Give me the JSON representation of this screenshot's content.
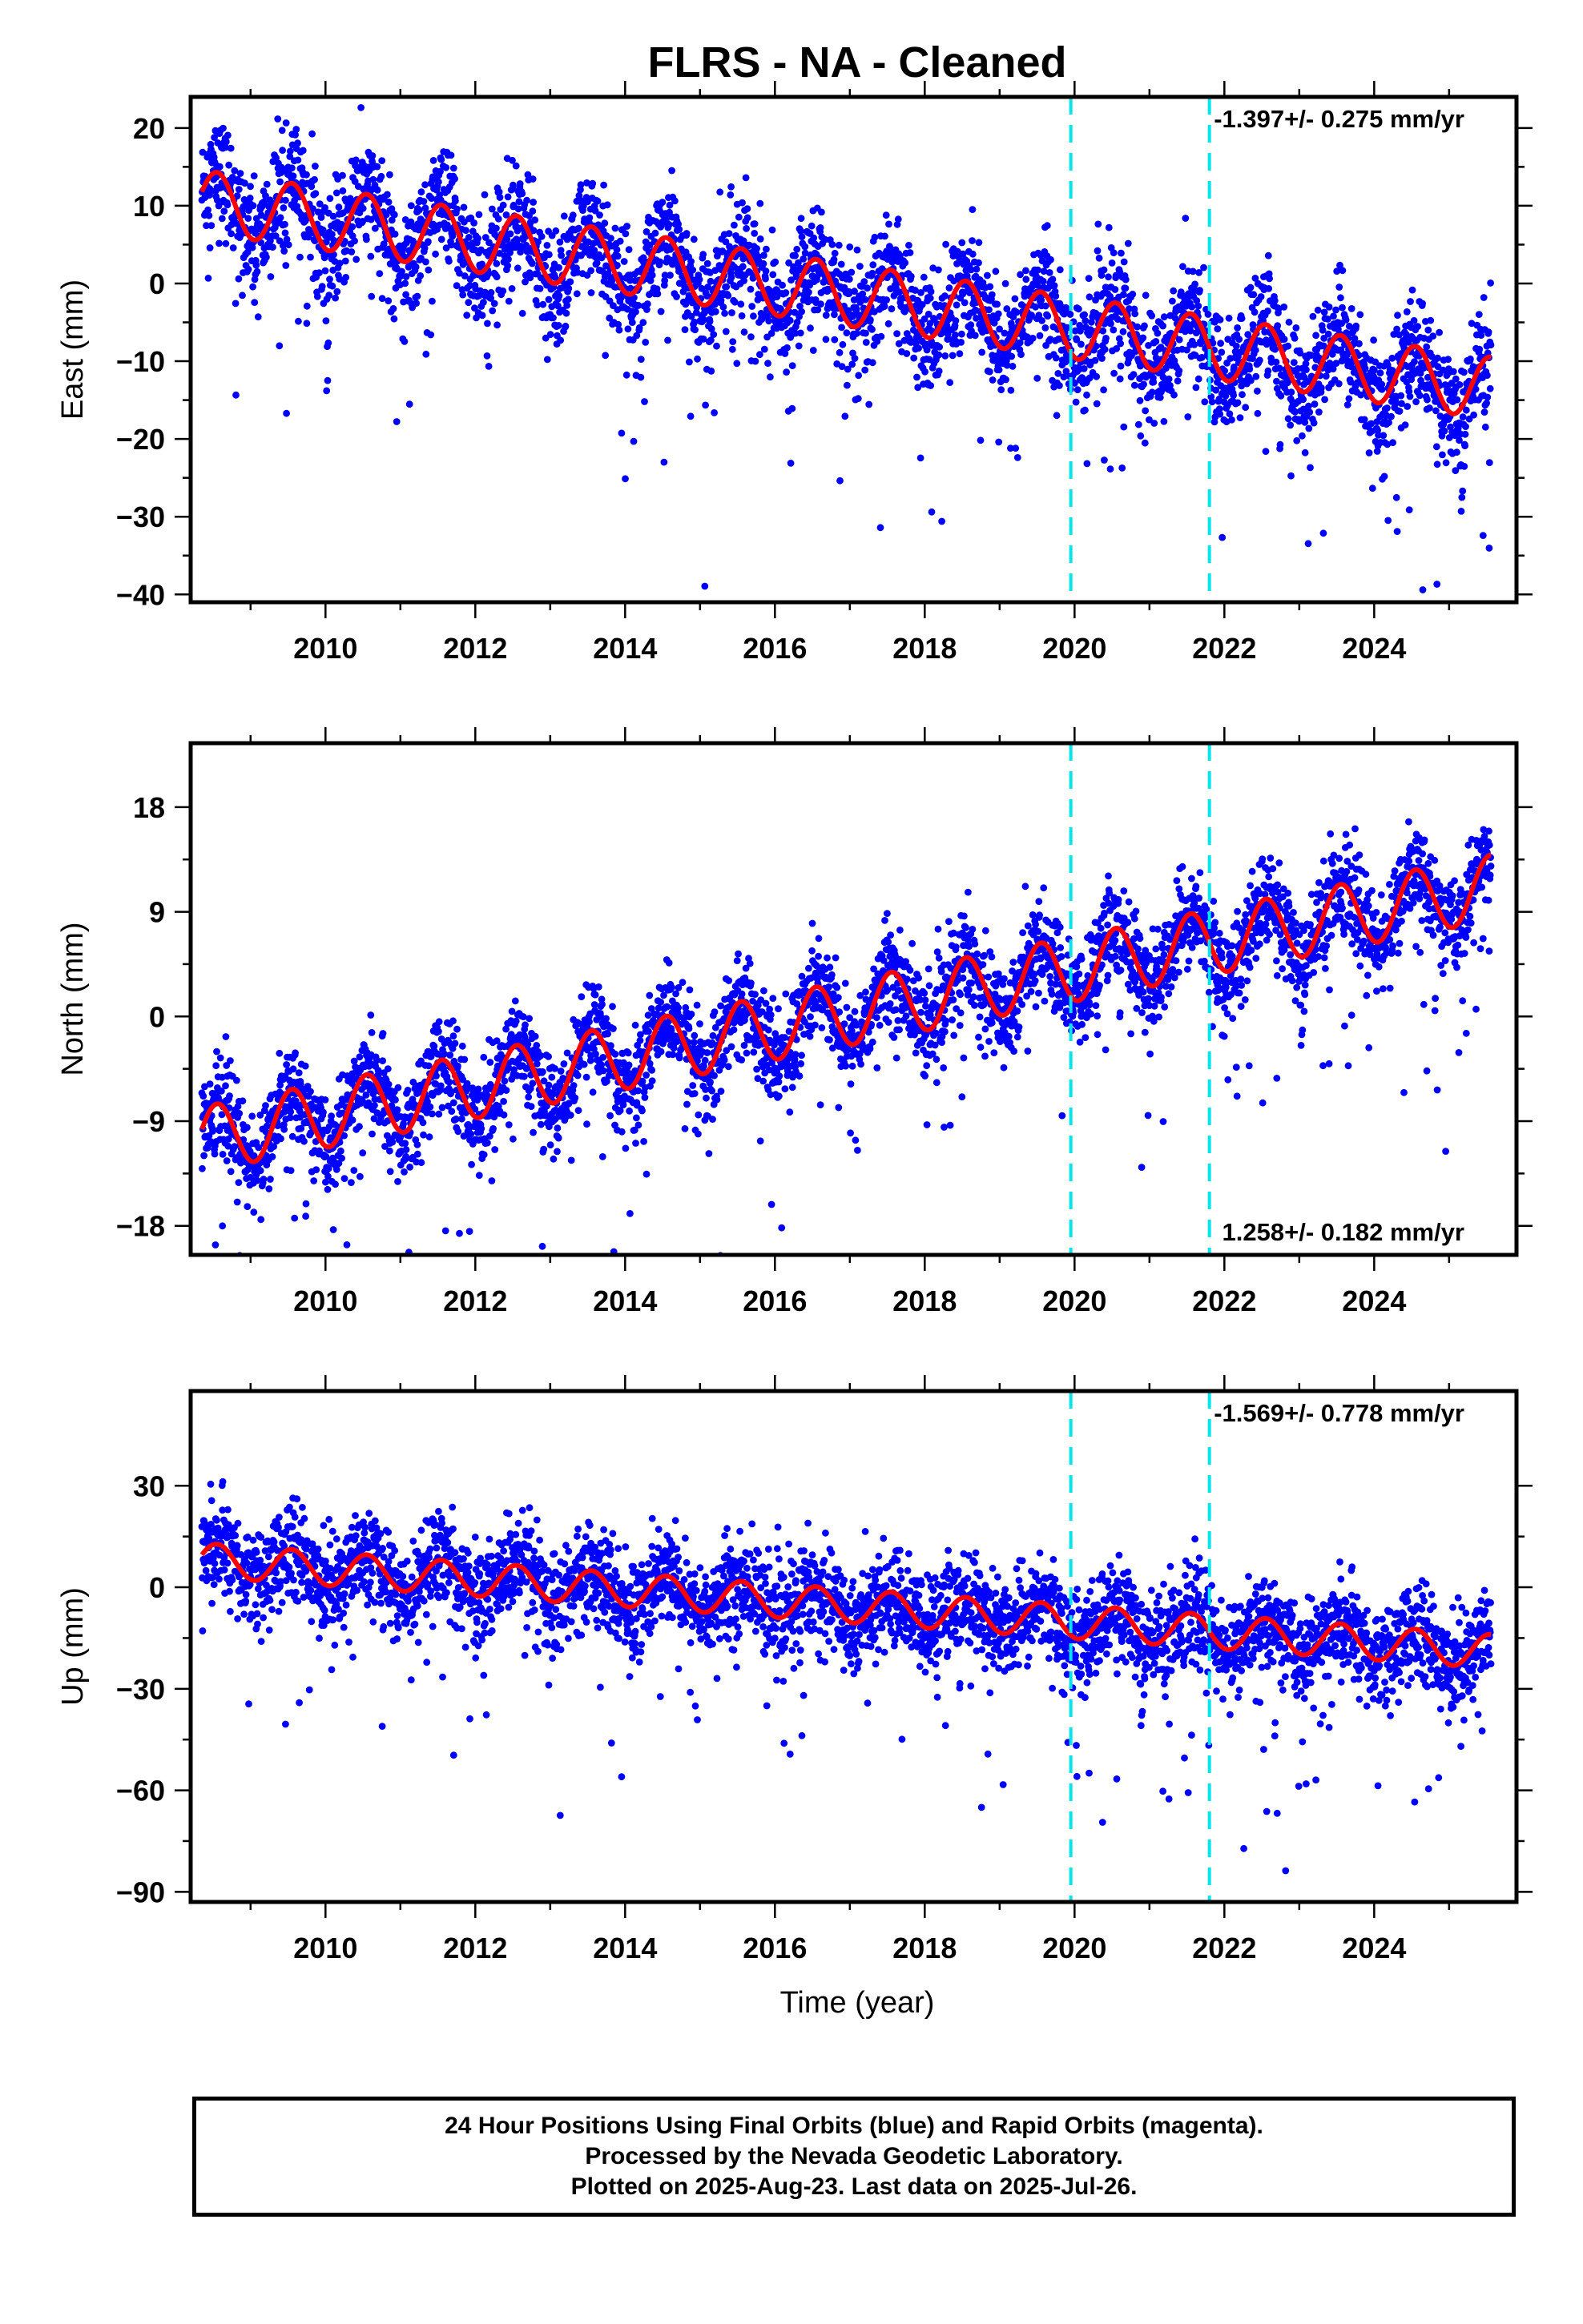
{
  "title": "FLRS  - NA - Cleaned",
  "xlabel": "Time (year)",
  "footer": {
    "line1": "24 Hour Positions Using Final Orbits (blue) and Rapid Orbits (magenta).",
    "line2": "Processed by the Nevada Geodetic Laboratory.",
    "line3": "Plotted on 2025-Aug-23. Last data on 2025-Jul-26."
  },
  "colors": {
    "data_points": "#0000ff",
    "model_curve": "#ff0000",
    "event_lines": "#00e5ee",
    "axes": "#000000"
  },
  "chart_data": [
    {
      "type": "scatter",
      "component": "east",
      "ylabel": "East (mm)",
      "rate_text": "-1.397+/- 0.275 mm/yr",
      "rate_position": "top-right",
      "xlim": [
        2008.2,
        2025.9
      ],
      "ylim": [
        -41,
        24
      ],
      "xticks": [
        2010,
        2012,
        2014,
        2016,
        2018,
        2020,
        2022,
        2024
      ],
      "yticks": [
        20,
        10,
        0,
        -10,
        -20,
        -30,
        -40
      ],
      "ytick_labels": [
        "20",
        "10",
        "0",
        "−10",
        "−20",
        "−30",
        "−40"
      ],
      "trend": {
        "start_value": 10.5,
        "rate": -1.397,
        "seasonal_amplitude": 4.0
      },
      "scatter_sigma": 3.5,
      "event_lines_x": [
        2019.95,
        2021.8
      ],
      "grid": false
    },
    {
      "type": "scatter",
      "component": "north",
      "ylabel": "North (mm)",
      "rate_text": "1.258+/- 0.182 mm/yr",
      "rate_position": "bottom-right",
      "xlim": [
        2008.2,
        2025.9
      ],
      "ylim": [
        -20.5,
        23.5
      ],
      "xticks": [
        2010,
        2012,
        2014,
        2016,
        2018,
        2020,
        2022,
        2024
      ],
      "yticks": [
        18,
        9,
        0,
        -9,
        -18
      ],
      "ytick_labels": [
        "18",
        "9",
        "0",
        "−9",
        "−18"
      ],
      "trend": {
        "start_value": -10.5,
        "rate": 1.258,
        "seasonal_amplitude": 2.8
      },
      "scatter_sigma": 2.0,
      "event_lines_x": [
        2019.95,
        2021.8
      ],
      "grid": false
    },
    {
      "type": "scatter",
      "component": "up",
      "ylabel": "Up (mm)",
      "rate_text": "-1.569+/- 0.778 mm/yr",
      "rate_position": "top-right",
      "xlim": [
        2008.2,
        2025.9
      ],
      "ylim": [
        -93,
        58
      ],
      "xticks": [
        2010,
        2012,
        2014,
        2016,
        2018,
        2020,
        2022,
        2024
      ],
      "yticks": [
        30,
        0,
        -30,
        -60,
        -90
      ],
      "ytick_labels": [
        "30",
        "0",
        "−30",
        "−60",
        "−90"
      ],
      "trend": {
        "start_value": 8.0,
        "rate": -1.569,
        "seasonal_amplitude": 5.0
      },
      "scatter_sigma": 7.0,
      "event_lines_x": [
        2019.95,
        2021.8
      ],
      "grid": false
    }
  ]
}
